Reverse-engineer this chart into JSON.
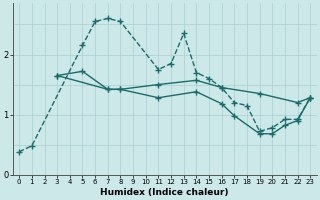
{
  "xlabel": "Humidex (Indice chaleur)",
  "bg_color": "#cce8e8",
  "grid_color": "#aacfcf",
  "line_color": "#1a6b6b",
  "xlim": [
    -0.5,
    23.5
  ],
  "ylim": [
    0,
    2.85
  ],
  "yticks": [
    0,
    1,
    2
  ],
  "xticks": [
    0,
    1,
    2,
    3,
    4,
    5,
    6,
    7,
    8,
    9,
    10,
    11,
    12,
    13,
    14,
    15,
    16,
    17,
    18,
    19,
    20,
    21,
    22,
    23
  ],
  "line1_x": [
    0,
    1,
    5,
    6,
    7,
    8,
    11,
    12,
    13,
    14,
    15,
    16,
    17,
    18,
    19,
    20,
    21,
    22,
    23
  ],
  "line1_y": [
    0.38,
    0.48,
    2.15,
    2.55,
    2.6,
    2.55,
    1.75,
    1.85,
    2.35,
    1.7,
    1.6,
    1.45,
    1.2,
    1.15,
    0.72,
    0.78,
    0.92,
    0.92,
    1.28
  ],
  "line2_x": [
    3,
    5,
    7,
    8,
    11,
    14,
    16,
    19,
    22,
    23
  ],
  "line2_y": [
    1.65,
    1.72,
    1.42,
    1.42,
    1.5,
    1.57,
    1.45,
    1.35,
    1.2,
    1.28
  ],
  "line3_x": [
    3,
    7,
    8,
    11,
    14,
    16,
    17,
    19,
    20,
    21,
    22,
    23
  ],
  "line3_y": [
    1.65,
    1.42,
    1.42,
    1.28,
    1.38,
    1.18,
    0.98,
    0.68,
    0.68,
    0.82,
    0.9,
    1.28
  ],
  "marker_size": 3,
  "line_width": 1.0
}
